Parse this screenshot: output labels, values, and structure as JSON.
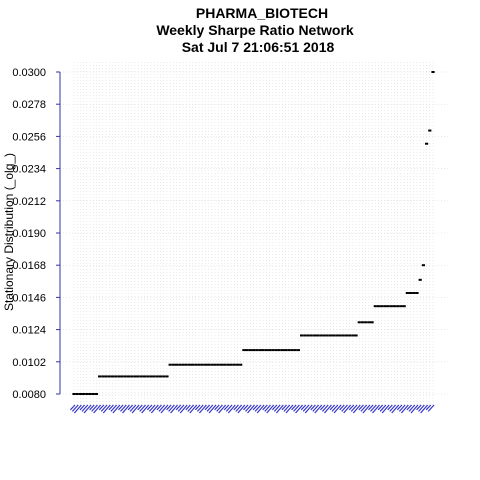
{
  "chart_data": {
    "type": "scatter",
    "title": [
      "PHARMA_BIOTECH",
      "Weekly  Sharpe Ratio Network",
      "Sat Jul  7 21:06:51 2018"
    ],
    "xlabel": "",
    "ylabel": "Stationary Distribution (_olg_)",
    "ylim": [
      0.008,
      0.03
    ],
    "yticks": [
      "0.0300",
      "0.0278",
      "0.0256",
      "0.0234",
      "0.0212",
      "0.0190",
      "0.0168",
      "0.0146",
      "0.0124",
      "0.0102",
      "0.0080"
    ],
    "grid": true,
    "x_tick_labels_legible": false,
    "levels": [
      {
        "value": 0.008,
        "count": 8
      },
      {
        "value": 0.0092,
        "count": 22
      },
      {
        "value": 0.01,
        "count": 23
      },
      {
        "value": 0.011,
        "count": 18
      },
      {
        "value": 0.012,
        "count": 18
      },
      {
        "value": 0.0129,
        "count": 5
      },
      {
        "value": 0.014,
        "count": 10
      },
      {
        "value": 0.0149,
        "count": 4
      },
      {
        "value": 0.0158,
        "count": 1
      },
      {
        "value": 0.0168,
        "count": 1
      },
      {
        "value": 0.0251,
        "count": 1
      },
      {
        "value": 0.026,
        "count": 1
      },
      {
        "value": 0.03,
        "count": 1
      }
    ],
    "colors": {
      "points": "#000000",
      "y_axis": "#3333aa",
      "x_ticks": "#3333cc",
      "grid": "#d6d6d6"
    }
  }
}
